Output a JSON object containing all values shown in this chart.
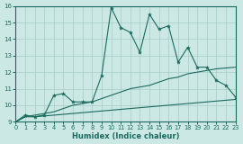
{
  "xlabel": "Humidex (Indice chaleur)",
  "xlim": [
    0,
    23
  ],
  "ylim": [
    9,
    16
  ],
  "yticks": [
    9,
    10,
    11,
    12,
    13,
    14,
    15,
    16
  ],
  "xticks": [
    0,
    1,
    2,
    3,
    4,
    5,
    6,
    7,
    8,
    9,
    10,
    11,
    12,
    13,
    14,
    15,
    16,
    17,
    18,
    19,
    20,
    21,
    22,
    23
  ],
  "bg_color": "#cce8e4",
  "grid_color": "#a8ccc8",
  "line_color": "#1a6b5e",
  "line_bottom_y": [
    9.0,
    9.3,
    9.3,
    9.35,
    9.4,
    9.45,
    9.5,
    9.55,
    9.6,
    9.65,
    9.7,
    9.75,
    9.8,
    9.85,
    9.9,
    9.95,
    10.0,
    10.05,
    10.1,
    10.15,
    10.2,
    10.25,
    10.3,
    10.35
  ],
  "line_mid_y": [
    9.0,
    9.3,
    9.4,
    9.5,
    9.6,
    9.8,
    10.0,
    10.1,
    10.2,
    10.4,
    10.6,
    10.8,
    11.0,
    11.1,
    11.2,
    11.4,
    11.6,
    11.7,
    11.9,
    12.0,
    12.1,
    12.2,
    12.25,
    12.3
  ],
  "line_daily_y": [
    9.0,
    9.4,
    9.3,
    9.4,
    10.6,
    10.7,
    10.2,
    10.2,
    10.2,
    11.8,
    15.9,
    14.7,
    14.4,
    13.2,
    15.5,
    14.6,
    14.8,
    12.6,
    13.5,
    12.3,
    12.3,
    11.5,
    11.2,
    10.5
  ]
}
